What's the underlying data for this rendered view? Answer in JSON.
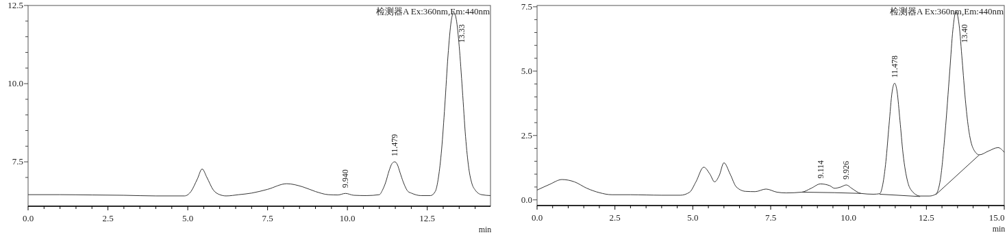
{
  "chart_data": [
    {
      "type": "line",
      "xlabel": "min",
      "xlim": [
        0,
        14.48
      ],
      "ylim": [
        6.08,
        12.5
      ],
      "xticks": [
        {
          "value": 0,
          "label": "0.0"
        },
        {
          "value": 0.5,
          "label": null
        },
        {
          "value": 1,
          "label": null
        },
        {
          "value": 1.5,
          "label": null
        },
        {
          "value": 2,
          "label": null
        },
        {
          "value": 2.5,
          "label": "2.5"
        },
        {
          "value": 3,
          "label": null
        },
        {
          "value": 3.5,
          "label": null
        },
        {
          "value": 4,
          "label": null
        },
        {
          "value": 4.5,
          "label": null
        },
        {
          "value": 5,
          "label": "5.0"
        },
        {
          "value": 5.5,
          "label": null
        },
        {
          "value": 6,
          "label": null
        },
        {
          "value": 6.5,
          "label": null
        },
        {
          "value": 7,
          "label": null
        },
        {
          "value": 7.5,
          "label": "7.5"
        },
        {
          "value": 8,
          "label": null
        },
        {
          "value": 8.5,
          "label": null
        },
        {
          "value": 9,
          "label": null
        },
        {
          "value": 9.5,
          "label": null
        },
        {
          "value": 10,
          "label": "10.0"
        },
        {
          "value": 10.5,
          "label": null
        },
        {
          "value": 11,
          "label": null
        },
        {
          "value": 11.5,
          "label": null
        },
        {
          "value": 12,
          "label": null
        },
        {
          "value": 12.5,
          "label": "12.5"
        },
        {
          "value": 13,
          "label": null
        },
        {
          "value": 13.5,
          "label": null
        },
        {
          "value": 14,
          "label": null
        }
      ],
      "yticks": [
        {
          "value": 7,
          "label": null
        },
        {
          "value": 7.5,
          "label": "7.5"
        },
        {
          "value": 8,
          "label": null
        },
        {
          "value": 8.5,
          "label": null
        },
        {
          "value": 9,
          "label": null
        },
        {
          "value": 9.5,
          "label": null
        },
        {
          "value": 10,
          "label": "10.0"
        },
        {
          "value": 10.5,
          "label": null
        },
        {
          "value": 11,
          "label": null
        },
        {
          "value": 11.5,
          "label": null
        },
        {
          "value": 12,
          "label": null
        },
        {
          "value": 12.5,
          "label": "12.5"
        }
      ],
      "grid": false,
      "series": [
        {
          "color": "#333333",
          "x": [
            0,
            1,
            2,
            3,
            4,
            4.9,
            5.1,
            5.3,
            5.45,
            5.6,
            5.8,
            6.0,
            6.2,
            6.6,
            7.0,
            7.5,
            8.1,
            8.6,
            9.0,
            9.4,
            9.7,
            9.94,
            10.2,
            10.6,
            11.0,
            11.1,
            11.2,
            11.3,
            11.4,
            11.48,
            11.56,
            11.65,
            11.75,
            11.9,
            12.0,
            12.3,
            12.6,
            12.75,
            12.85,
            12.95,
            13.05,
            13.15,
            13.25,
            13.33,
            13.41,
            13.5,
            13.6,
            13.7,
            13.8,
            13.9,
            14.0,
            14.2,
            14.48
          ],
          "values": [
            6.45,
            6.45,
            6.44,
            6.43,
            6.41,
            6.41,
            6.55,
            6.95,
            7.27,
            7.0,
            6.6,
            6.45,
            6.41,
            6.45,
            6.5,
            6.62,
            6.8,
            6.7,
            6.55,
            6.45,
            6.44,
            6.49,
            6.43,
            6.42,
            6.45,
            6.6,
            6.85,
            7.2,
            7.45,
            7.5,
            7.42,
            7.15,
            6.85,
            6.55,
            6.5,
            6.42,
            6.42,
            6.55,
            7.0,
            7.9,
            9.3,
            10.9,
            12.0,
            12.28,
            12.05,
            11.2,
            9.8,
            8.3,
            7.3,
            6.8,
            6.6,
            6.45,
            6.42
          ]
        }
      ],
      "annotations": [
        "检测器A Ex:360nm,Em:440nm",
        {
          "text": "9.940",
          "x": 9.94,
          "y": 6.49
        },
        {
          "text": "11.479",
          "x": 11.48,
          "y": 7.5
        },
        {
          "text": "13.33",
          "x": 13.33,
          "y": 12.28
        }
      ]
    },
    {
      "type": "line",
      "xlabel": "min",
      "xlim": [
        0,
        15
      ],
      "ylim": [
        -0.22,
        7.55
      ],
      "xticks": [
        {
          "value": 0,
          "label": "0.0"
        },
        {
          "value": 0.5,
          "label": null
        },
        {
          "value": 1,
          "label": null
        },
        {
          "value": 1.5,
          "label": null
        },
        {
          "value": 2,
          "label": null
        },
        {
          "value": 2.5,
          "label": "2.5"
        },
        {
          "value": 3,
          "label": null
        },
        {
          "value": 3.5,
          "label": null
        },
        {
          "value": 4,
          "label": null
        },
        {
          "value": 4.5,
          "label": null
        },
        {
          "value": 5,
          "label": "5.0"
        },
        {
          "value": 5.5,
          "label": null
        },
        {
          "value": 6,
          "label": null
        },
        {
          "value": 6.5,
          "label": null
        },
        {
          "value": 7,
          "label": null
        },
        {
          "value": 7.5,
          "label": "7.5"
        },
        {
          "value": 8,
          "label": null
        },
        {
          "value": 8.5,
          "label": null
        },
        {
          "value": 9,
          "label": null
        },
        {
          "value": 9.5,
          "label": null
        },
        {
          "value": 10,
          "label": "10.0"
        },
        {
          "value": 10.5,
          "label": null
        },
        {
          "value": 11,
          "label": null
        },
        {
          "value": 11.5,
          "label": null
        },
        {
          "value": 12,
          "label": null
        },
        {
          "value": 12.5,
          "label": "12.5"
        },
        {
          "value": 13,
          "label": null
        },
        {
          "value": 13.5,
          "label": null
        },
        {
          "value": 14,
          "label": null
        },
        {
          "value": 14.5,
          "label": null
        },
        {
          "value": 15,
          "label": "15.0"
        }
      ],
      "yticks": [
        {
          "value": 0,
          "label": "0.0"
        },
        {
          "value": 0.5,
          "label": null
        },
        {
          "value": 1,
          "label": null
        },
        {
          "value": 1.5,
          "label": null
        },
        {
          "value": 2,
          "label": null
        },
        {
          "value": 2.5,
          "label": "2.5"
        },
        {
          "value": 3,
          "label": null
        },
        {
          "value": 3.5,
          "label": null
        },
        {
          "value": 4,
          "label": null
        },
        {
          "value": 4.5,
          "label": null
        },
        {
          "value": 5,
          "label": "5.0"
        },
        {
          "value": 5.5,
          "label": null
        },
        {
          "value": 6,
          "label": null
        },
        {
          "value": 6.5,
          "label": null
        },
        {
          "value": 7,
          "label": null
        },
        {
          "value": 7.5,
          "label": "7.5"
        }
      ],
      "grid": false,
      "series": [
        {
          "color": "#333333",
          "x": [
            0,
            0.4,
            0.8,
            1.2,
            1.6,
            2.0,
            2.4,
            3.0,
            3.5,
            4.0,
            4.6,
            4.9,
            5.1,
            5.35,
            5.55,
            5.7,
            5.85,
            6.0,
            6.2,
            6.4,
            6.7,
            7.0,
            7.35,
            7.7,
            8.0,
            8.5,
            8.8,
            9.1,
            9.4,
            9.55,
            9.75,
            9.93,
            10.1,
            10.4,
            10.8,
            11.0,
            11.1,
            11.2,
            11.3,
            11.4,
            11.48,
            11.56,
            11.65,
            11.75,
            11.9,
            12.0,
            12.3,
            12.6,
            12.8,
            12.95,
            13.1,
            13.25,
            13.35,
            13.45,
            13.55,
            13.65,
            13.75,
            13.85,
            14.0,
            14.2,
            14.5,
            14.8,
            15.0
          ],
          "values": [
            0.38,
            0.6,
            0.79,
            0.7,
            0.45,
            0.28,
            0.2,
            0.2,
            0.19,
            0.18,
            0.18,
            0.3,
            0.7,
            1.27,
            1.0,
            0.7,
            0.95,
            1.44,
            1.0,
            0.5,
            0.33,
            0.32,
            0.42,
            0.3,
            0.27,
            0.3,
            0.45,
            0.62,
            0.55,
            0.45,
            0.5,
            0.58,
            0.45,
            0.25,
            0.22,
            0.24,
            0.6,
            1.5,
            2.9,
            4.2,
            4.53,
            4.2,
            3.1,
            1.8,
            0.7,
            0.4,
            0.15,
            0.15,
            0.22,
            0.8,
            2.6,
            5.0,
            6.6,
            7.32,
            6.8,
            5.4,
            3.9,
            2.8,
            2.0,
            1.75,
            1.9,
            2.03,
            1.85
          ]
        },
        {
          "color": "#333333",
          "x": [
            8.5,
            9.55,
            10.4,
            null,
            11.0,
            12.3,
            null,
            12.8,
            14.2
          ],
          "values": [
            0.3,
            0.28,
            0.25,
            null,
            0.22,
            0.13,
            null,
            0.2,
            1.75
          ]
        }
      ],
      "annotations": [
        "检测器A Ex:360nm,Em:440nm",
        {
          "text": "9.114",
          "x": 9.1,
          "y": 0.62
        },
        {
          "text": "9.926",
          "x": 9.93,
          "y": 0.58
        },
        {
          "text": "11.478",
          "x": 11.48,
          "y": 4.53
        },
        {
          "text": "13.40",
          "x": 13.45,
          "y": 7.32
        }
      ]
    }
  ]
}
